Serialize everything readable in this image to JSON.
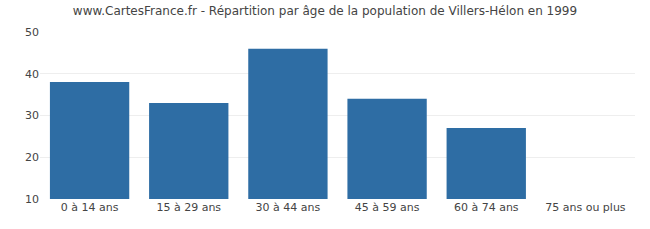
{
  "chart_data": {
    "type": "bar",
    "title": "www.CartesFrance.fr - Répartition par âge de la population de Villers-Hélon en 1999",
    "categories": [
      "0 à 14 ans",
      "15 à 29 ans",
      "30 à 44 ans",
      "45 à 59 ans",
      "60 à 74 ans",
      "75 ans ou plus"
    ],
    "values": [
      38,
      33,
      46,
      34,
      27,
      10
    ],
    "color": "#2e6da4",
    "ylim": [
      10,
      50
    ],
    "yticks": [
      10,
      20,
      30,
      40,
      50
    ],
    "grid": true
  }
}
